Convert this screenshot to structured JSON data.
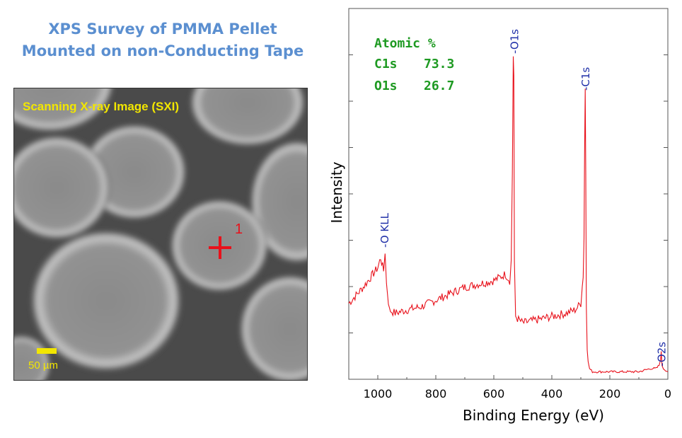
{
  "title": {
    "line1": "XPS Survey of PMMA Pellet",
    "line2": "Mounted on non-Conducting Tape"
  },
  "sxi_panel": {
    "label": "Scanning X-ray Image (SXI)",
    "scale_label": "50 µm",
    "marker_label": "1"
  },
  "composition": {
    "heading": "Atomic %",
    "rows": [
      {
        "element": "C1s",
        "value": "73.3"
      },
      {
        "element": "O1s",
        "value": "26.7"
      }
    ]
  },
  "chart_data": {
    "type": "line",
    "title": "",
    "xlabel": "Binding Energy (eV)",
    "ylabel": "Intensity",
    "xlim": [
      1100,
      0
    ],
    "x_reversed": true,
    "ylim": [
      0,
      100
    ],
    "y_tick_labels_shown": false,
    "x_ticks": [
      1000,
      800,
      600,
      400,
      200,
      0
    ],
    "grid": false,
    "series": [
      {
        "color": "#e8111b",
        "x": [
          1100,
          1050,
          1000,
          990,
          980,
          975,
          970,
          960,
          940,
          900,
          850,
          800,
          750,
          700,
          650,
          600,
          560,
          545,
          540,
          536,
          533,
          531,
          529,
          525,
          515,
          500,
          450,
          400,
          350,
          320,
          300,
          295,
          292,
          289,
          287,
          285,
          283,
          281,
          278,
          275,
          270,
          260,
          200,
          150,
          100,
          60,
          40,
          30,
          25,
          23,
          20,
          15,
          0
        ],
        "y": [
          22,
          27,
          33,
          36,
          32,
          38,
          28,
          20,
          19,
          20,
          21,
          23,
          25,
          27,
          28,
          29,
          31,
          29,
          35,
          62,
          98,
          92,
          34,
          18,
          17,
          16,
          17,
          18,
          19,
          20,
          22,
          28,
          30,
          42,
          68,
          88,
          62,
          22,
          8,
          4,
          2,
          1,
          1,
          1,
          1,
          2,
          2,
          3,
          5,
          7,
          3,
          2,
          1
        ]
      }
    ],
    "annotations": [
      {
        "text": "-O KLL",
        "x": 978
      },
      {
        "text": "-O1s",
        "x": 531
      },
      {
        "text": "-C1s",
        "x": 285
      },
      {
        "text": "-O2s",
        "x": 23
      }
    ]
  }
}
